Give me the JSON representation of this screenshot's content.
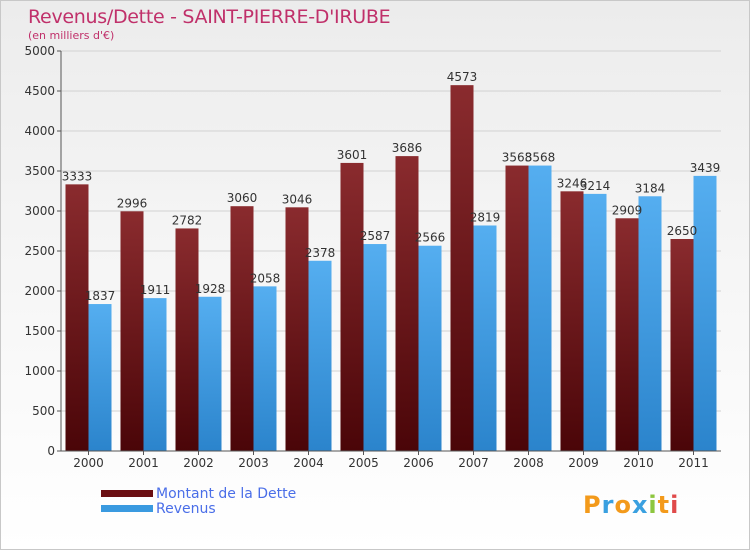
{
  "title": "Revenus/Dette - SAINT-PIERRE-D'IRUBE",
  "subtitle": "(en milliers d'€)",
  "colors": {
    "dette": "#6b0f12",
    "revenus": "#3a9ae0",
    "title": "#c0306a",
    "legend_text": "#4a6ee8"
  },
  "legend": [
    {
      "label": "Montant de la Dette",
      "color": "#6b0f12"
    },
    {
      "label": "Revenus",
      "color": "#3a9ae0"
    }
  ],
  "logo": {
    "text": "Proxiti",
    "letters": [
      "P",
      "r",
      "o",
      "x",
      "i",
      "t",
      "i"
    ],
    "colors": [
      "#f39a1b",
      "#3aa0e0",
      "#f39a1b",
      "#3aa0e0",
      "#8dc63f",
      "#f39a1b",
      "#e04a4a"
    ]
  },
  "chart_data": {
    "type": "bar",
    "title": "Revenus/Dette - SAINT-PIERRE-D'IRUBE",
    "subtitle": "(en milliers d'€)",
    "categories": [
      "2000",
      "2001",
      "2002",
      "2003",
      "2004",
      "2005",
      "2006",
      "2007",
      "2008",
      "2009",
      "2010",
      "2011"
    ],
    "series": [
      {
        "name": "Montant de la Dette",
        "values": [
          3333,
          2996,
          2782,
          3060,
          3046,
          3601,
          3686,
          4573,
          3568,
          3246,
          2909,
          2650
        ]
      },
      {
        "name": "Revenus",
        "values": [
          1837,
          1911,
          1928,
          2058,
          2378,
          2587,
          2566,
          2819,
          3568,
          3214,
          3184,
          3439
        ]
      }
    ],
    "ylim": [
      0,
      5000
    ],
    "yticks": [
      0,
      500,
      1000,
      1500,
      2000,
      2500,
      3000,
      3500,
      4000,
      4500,
      5000
    ],
    "grid": true,
    "legend_position": "bottom-left"
  }
}
